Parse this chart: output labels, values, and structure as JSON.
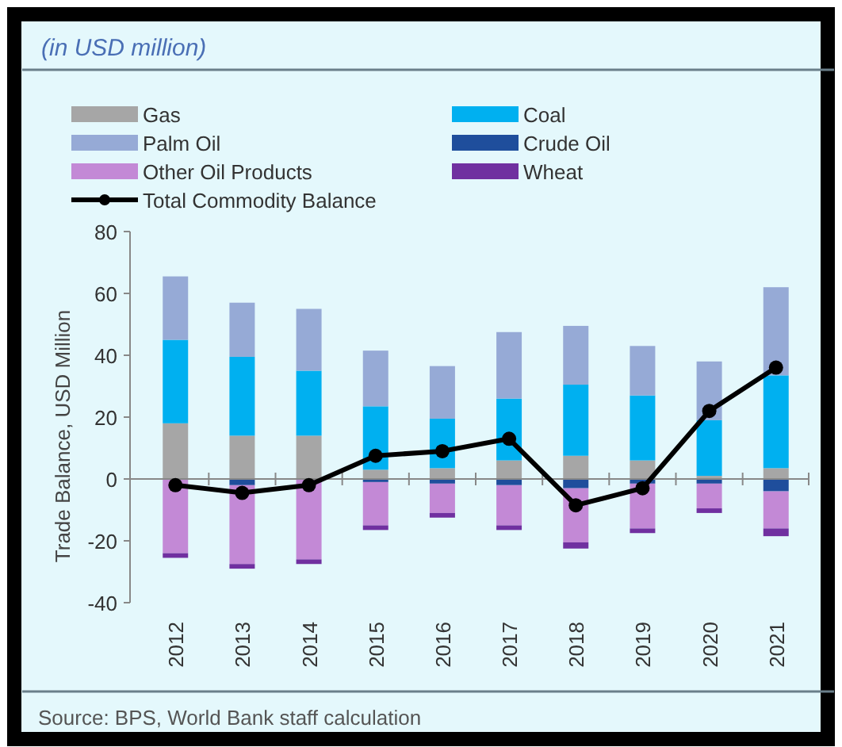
{
  "chart_data": {
    "type": "bar",
    "title": "(in USD million)",
    "ylabel": "Trade Balance, USD Million",
    "categories": [
      "2012",
      "2013",
      "2014",
      "2015",
      "2016",
      "2017",
      "2018",
      "2019",
      "2020",
      "2021"
    ],
    "stacked": true,
    "series": [
      {
        "name": "Gas",
        "color": "#a6a6a6",
        "values": [
          18,
          14,
          14,
          3,
          3.5,
          6,
          7.5,
          6,
          1,
          3.5
        ]
      },
      {
        "name": "Coal",
        "color": "#00b0f0",
        "values": [
          27,
          25.5,
          21,
          20.5,
          16,
          20,
          23,
          21,
          18,
          30
        ]
      },
      {
        "name": "Palm Oil",
        "color": "#96aad6",
        "values": [
          20.5,
          17.5,
          20,
          18,
          17,
          21.5,
          19,
          16,
          19,
          28.5
        ]
      },
      {
        "name": "Crude Oil",
        "color": "#1f4e9c",
        "values": [
          null,
          -2,
          null,
          -1,
          -1.5,
          -2,
          -3,
          -1.5,
          -1.5,
          -4
        ]
      },
      {
        "name": "Other Oil Products",
        "color": "#c389d6",
        "values": [
          -24,
          -25.5,
          -26,
          -14,
          -9.5,
          -13,
          -17.5,
          -14.5,
          -8,
          -12
        ]
      },
      {
        "name": "Wheat",
        "color": "#7030a0",
        "values": [
          -1.5,
          -1.5,
          -1.5,
          -1.5,
          -1.5,
          -1.5,
          -2,
          -1.5,
          -1.5,
          -2.5
        ]
      },
      {
        "name": "Total Commodity Balance",
        "type": "line",
        "color": "#000000",
        "marker": "circle",
        "values": [
          -2,
          -4.5,
          -2,
          7.5,
          9,
          13,
          -8.5,
          -3,
          22,
          36
        ]
      }
    ],
    "ylim": [
      -40,
      80
    ],
    "yticks": [
      -40,
      -20,
      0,
      20,
      40,
      60,
      80
    ],
    "legend": "top left",
    "annotations": [
      "Source: BPS, World Bank staff calculation"
    ]
  }
}
